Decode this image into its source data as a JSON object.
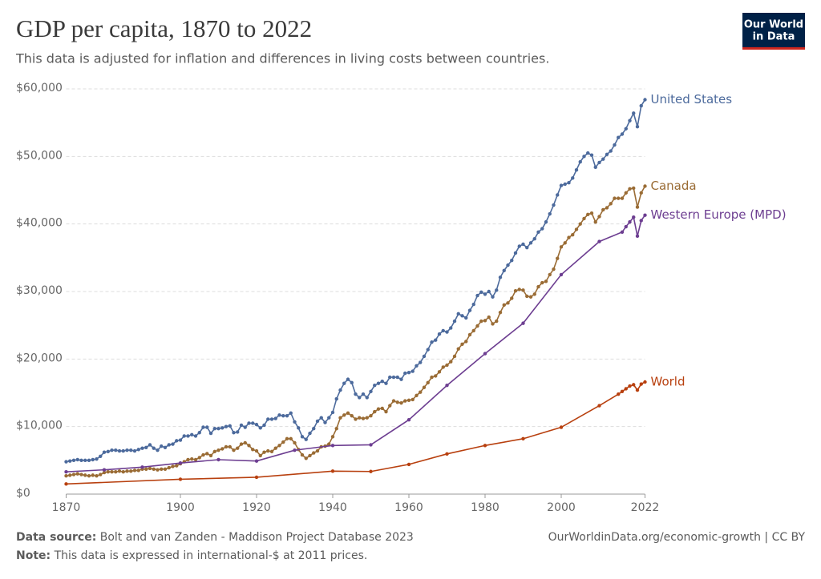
{
  "chart_data": {
    "type": "line",
    "title": "GDP per capita, 1870 to 2022",
    "subtitle": "This data is adjusted for inflation and differences in living costs between countries.",
    "xlim": [
      1870,
      2022
    ],
    "xticks": [
      1870,
      1900,
      1920,
      1940,
      1960,
      1980,
      2000,
      2022
    ],
    "ylim": [
      0,
      60000
    ],
    "yticks": [
      {
        "value": 0,
        "label": "$0"
      },
      {
        "value": 10000,
        "label": "$10,000"
      },
      {
        "value": 20000,
        "label": "$20,000"
      },
      {
        "value": 30000,
        "label": "$30,000"
      },
      {
        "value": 40000,
        "label": "$40,000"
      },
      {
        "value": 50000,
        "label": "$50,000"
      },
      {
        "value": 60000,
        "label": "$60,000"
      }
    ],
    "grid": true,
    "series": [
      {
        "name": "United States",
        "color": "#4c6a9c",
        "x": [
          1870,
          1871,
          1872,
          1873,
          1874,
          1875,
          1876,
          1877,
          1878,
          1879,
          1880,
          1881,
          1882,
          1883,
          1884,
          1885,
          1886,
          1887,
          1888,
          1889,
          1890,
          1891,
          1892,
          1893,
          1894,
          1895,
          1896,
          1897,
          1898,
          1899,
          1900,
          1901,
          1902,
          1903,
          1904,
          1905,
          1906,
          1907,
          1908,
          1909,
          1910,
          1911,
          1912,
          1913,
          1914,
          1915,
          1916,
          1917,
          1918,
          1919,
          1920,
          1921,
          1922,
          1923,
          1924,
          1925,
          1926,
          1927,
          1928,
          1929,
          1930,
          1931,
          1932,
          1933,
          1934,
          1935,
          1936,
          1937,
          1938,
          1939,
          1940,
          1941,
          1942,
          1943,
          1944,
          1945,
          1946,
          1947,
          1948,
          1949,
          1950,
          1951,
          1952,
          1953,
          1954,
          1955,
          1956,
          1957,
          1958,
          1959,
          1960,
          1961,
          1962,
          1963,
          1964,
          1965,
          1966,
          1967,
          1968,
          1969,
          1970,
          1971,
          1972,
          1973,
          1974,
          1975,
          1976,
          1977,
          1978,
          1979,
          1980,
          1981,
          1982,
          1983,
          1984,
          1985,
          1986,
          1987,
          1988,
          1989,
          1990,
          1991,
          1992,
          1993,
          1994,
          1995,
          1996,
          1997,
          1998,
          1999,
          2000,
          2001,
          2002,
          2003,
          2004,
          2005,
          2006,
          2007,
          2008,
          2009,
          2010,
          2011,
          2012,
          2013,
          2014,
          2015,
          2016,
          2017,
          2018,
          2019,
          2020,
          2021,
          2022
        ],
        "values": [
          4800,
          4900,
          5000,
          5100,
          5000,
          5000,
          5000,
          5100,
          5200,
          5600,
          6200,
          6300,
          6500,
          6500,
          6400,
          6400,
          6500,
          6500,
          6400,
          6600,
          6800,
          6900,
          7300,
          6800,
          6500,
          7100,
          6900,
          7300,
          7400,
          7900,
          8000,
          8600,
          8600,
          8800,
          8600,
          9100,
          9900,
          9900,
          9000,
          9700,
          9700,
          9800,
          10000,
          10100,
          9100,
          9200,
          10200,
          9900,
          10500,
          10500,
          10300,
          9800,
          10200,
          11100,
          11100,
          11200,
          11700,
          11600,
          11600,
          12000,
          10700,
          9800,
          8500,
          8100,
          9000,
          9700,
          10800,
          11300,
          10600,
          11300,
          12100,
          14100,
          15400,
          16400,
          17000,
          16500,
          14800,
          14300,
          14800,
          14300,
          15200,
          16100,
          16400,
          16700,
          16400,
          17300,
          17300,
          17300,
          17000,
          17900,
          18000,
          18200,
          19000,
          19500,
          20400,
          21400,
          22500,
          22800,
          23700,
          24200,
          24000,
          24600,
          25600,
          26700,
          26400,
          26100,
          27200,
          28100,
          29400,
          29900,
          29600,
          30000,
          29200,
          30200,
          32100,
          33100,
          33900,
          34600,
          35700,
          36700,
          37000,
          36500,
          37200,
          37800,
          38800,
          39300,
          40300,
          41500,
          42800,
          44300,
          45700,
          45900,
          46100,
          46800,
          48000,
          49200,
          50000,
          50500,
          50200,
          48400,
          49100,
          49600,
          50300,
          50800,
          51700,
          52800,
          53300,
          54100,
          55300,
          56400,
          54400,
          57500,
          58400
        ]
      },
      {
        "name": "Canada",
        "color": "#9a6c35",
        "x": [
          1870,
          1871,
          1872,
          1873,
          1874,
          1875,
          1876,
          1877,
          1878,
          1879,
          1880,
          1881,
          1882,
          1883,
          1884,
          1885,
          1886,
          1887,
          1888,
          1889,
          1890,
          1891,
          1892,
          1893,
          1894,
          1895,
          1896,
          1897,
          1898,
          1899,
          1900,
          1901,
          1902,
          1903,
          1904,
          1905,
          1906,
          1907,
          1908,
          1909,
          1910,
          1911,
          1912,
          1913,
          1914,
          1915,
          1916,
          1917,
          1918,
          1919,
          1920,
          1921,
          1922,
          1923,
          1924,
          1925,
          1926,
          1927,
          1928,
          1929,
          1930,
          1931,
          1932,
          1933,
          1934,
          1935,
          1936,
          1937,
          1938,
          1939,
          1940,
          1941,
          1942,
          1943,
          1944,
          1945,
          1946,
          1947,
          1948,
          1949,
          1950,
          1951,
          1952,
          1953,
          1954,
          1955,
          1956,
          1957,
          1958,
          1959,
          1960,
          1961,
          1962,
          1963,
          1964,
          1965,
          1966,
          1967,
          1968,
          1969,
          1970,
          1971,
          1972,
          1973,
          1974,
          1975,
          1976,
          1977,
          1978,
          1979,
          1980,
          1981,
          1982,
          1983,
          1984,
          1985,
          1986,
          1987,
          1988,
          1989,
          1990,
          1991,
          1992,
          1993,
          1994,
          1995,
          1996,
          1997,
          1998,
          1999,
          2000,
          2001,
          2002,
          2003,
          2004,
          2005,
          2006,
          2007,
          2008,
          2009,
          2010,
          2011,
          2012,
          2013,
          2014,
          2015,
          2016,
          2017,
          2018,
          2019,
          2020,
          2021,
          2022
        ],
        "values": [
          2700,
          2800,
          2900,
          3000,
          2900,
          2800,
          2700,
          2800,
          2700,
          2900,
          3200,
          3300,
          3300,
          3300,
          3400,
          3300,
          3400,
          3400,
          3500,
          3500,
          3700,
          3700,
          3800,
          3700,
          3600,
          3700,
          3700,
          3900,
          4100,
          4200,
          4500,
          4800,
          5100,
          5200,
          5100,
          5400,
          5800,
          6000,
          5700,
          6300,
          6500,
          6700,
          7000,
          7000,
          6500,
          6800,
          7400,
          7600,
          7200,
          6600,
          6400,
          5700,
          6200,
          6400,
          6300,
          6800,
          7200,
          7700,
          8200,
          8200,
          7600,
          6600,
          5800,
          5300,
          5700,
          6100,
          6400,
          7000,
          7100,
          7400,
          8500,
          9700,
          11300,
          11700,
          12000,
          11600,
          11100,
          11300,
          11200,
          11300,
          11600,
          12200,
          12600,
          12700,
          12200,
          13100,
          13800,
          13600,
          13500,
          13800,
          13900,
          14000,
          14600,
          15100,
          15800,
          16500,
          17300,
          17500,
          18100,
          18800,
          19100,
          19600,
          20400,
          21500,
          22200,
          22600,
          23600,
          24200,
          24900,
          25600,
          25700,
          26200,
          25200,
          25600,
          26900,
          28000,
          28300,
          29000,
          30100,
          30300,
          30200,
          29300,
          29200,
          29600,
          30700,
          31300,
          31500,
          32500,
          33300,
          34900,
          36600,
          37200,
          38000,
          38400,
          39200,
          40000,
          40800,
          41400,
          41600,
          40300,
          41100,
          42100,
          42400,
          43000,
          43800,
          43800,
          43800,
          44600,
          45200,
          45300,
          42500,
          44600,
          45600
        ]
      },
      {
        "name": "Western Europe (MPD)",
        "color": "#6d3e91",
        "x": [
          1870,
          1880,
          1890,
          1900,
          1910,
          1920,
          1930,
          1940,
          1950,
          1960,
          1970,
          1980,
          1990,
          2000,
          2010,
          2016,
          2017,
          2018,
          2019,
          2020,
          2021,
          2022
        ],
        "values": [
          3300,
          3600,
          4000,
          4600,
          5100,
          4900,
          6500,
          7200,
          7300,
          11000,
          16100,
          20800,
          25300,
          32500,
          37400,
          38800,
          39600,
          40300,
          41000,
          38200,
          40500,
          41300
        ]
      },
      {
        "name": "World",
        "color": "#b8400f",
        "x": [
          1870,
          1900,
          1920,
          1940,
          1950,
          1960,
          1970,
          1980,
          1990,
          2000,
          2010,
          2015,
          2016,
          2017,
          2018,
          2019,
          2020,
          2021,
          2022
        ],
        "values": [
          1500,
          2200,
          2500,
          3400,
          3350,
          4400,
          5950,
          7200,
          8200,
          9900,
          13100,
          14800,
          15200,
          15600,
          16000,
          16200,
          15400,
          16300,
          16600
        ]
      }
    ]
  },
  "logo": [
    "Our World",
    "in Data"
  ],
  "footer": {
    "source_label": "Data source:",
    "source": "Bolt and van Zanden - Maddison Project Database 2023",
    "note_label": "Note:",
    "note": "This data is expressed in international-$ at 2011 prices.",
    "url": "OurWorldinData.org/economic-growth | CC BY"
  }
}
